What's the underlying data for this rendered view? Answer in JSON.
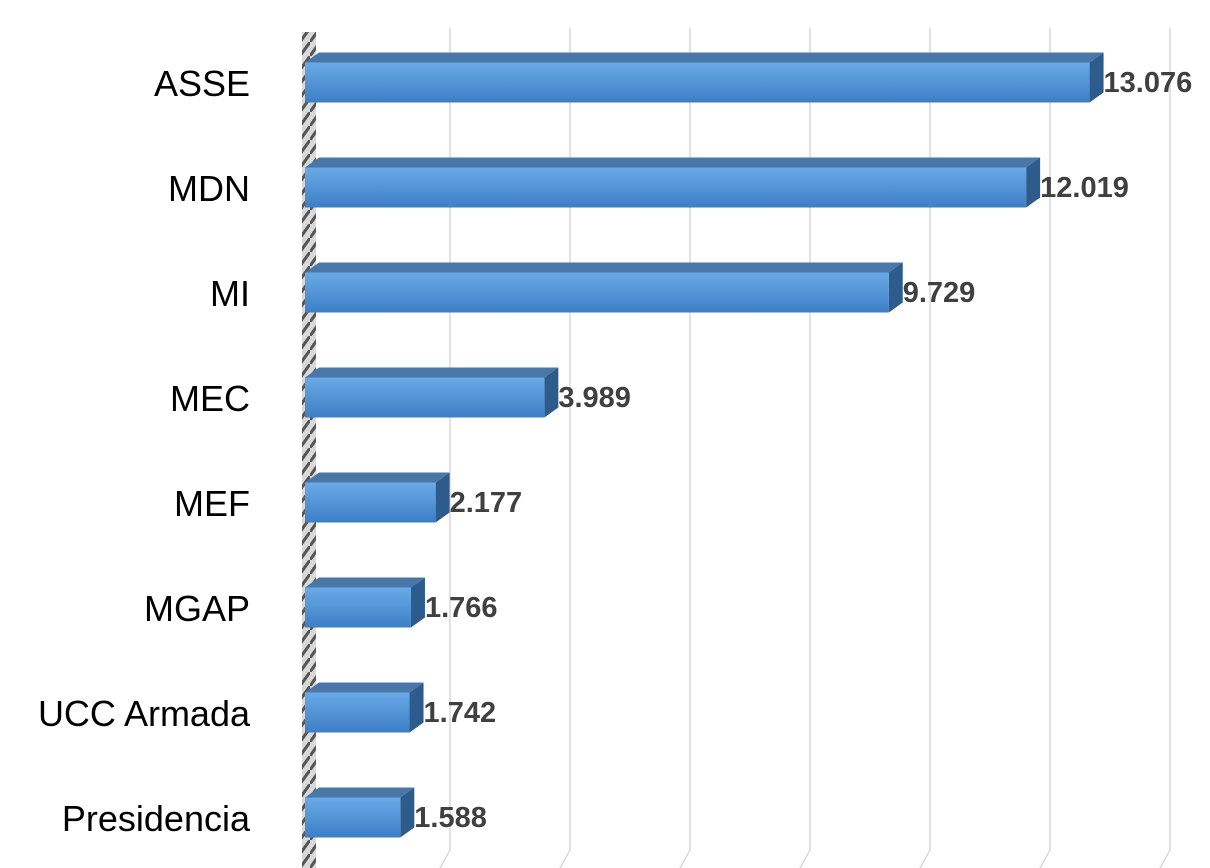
{
  "chart_data": {
    "type": "bar",
    "orientation": "horizontal",
    "categories": [
      "ASSE",
      "MDN",
      "MI",
      "MEC",
      "MEF",
      "MGAP",
      "UCC Armada",
      "Presidencia"
    ],
    "values": [
      13076,
      12019,
      9729,
      3989,
      2177,
      1766,
      1742,
      1588
    ],
    "value_labels": [
      "13.076",
      "12.019",
      "9.729",
      "3.989",
      "2.177",
      "1.766",
      "1.742",
      "1.588"
    ],
    "color": "#4f8fd6",
    "xlim": [
      0,
      14000
    ],
    "xticks": [
      0,
      2000,
      4000,
      6000,
      8000,
      10000,
      12000,
      14000
    ],
    "grid": true
  }
}
